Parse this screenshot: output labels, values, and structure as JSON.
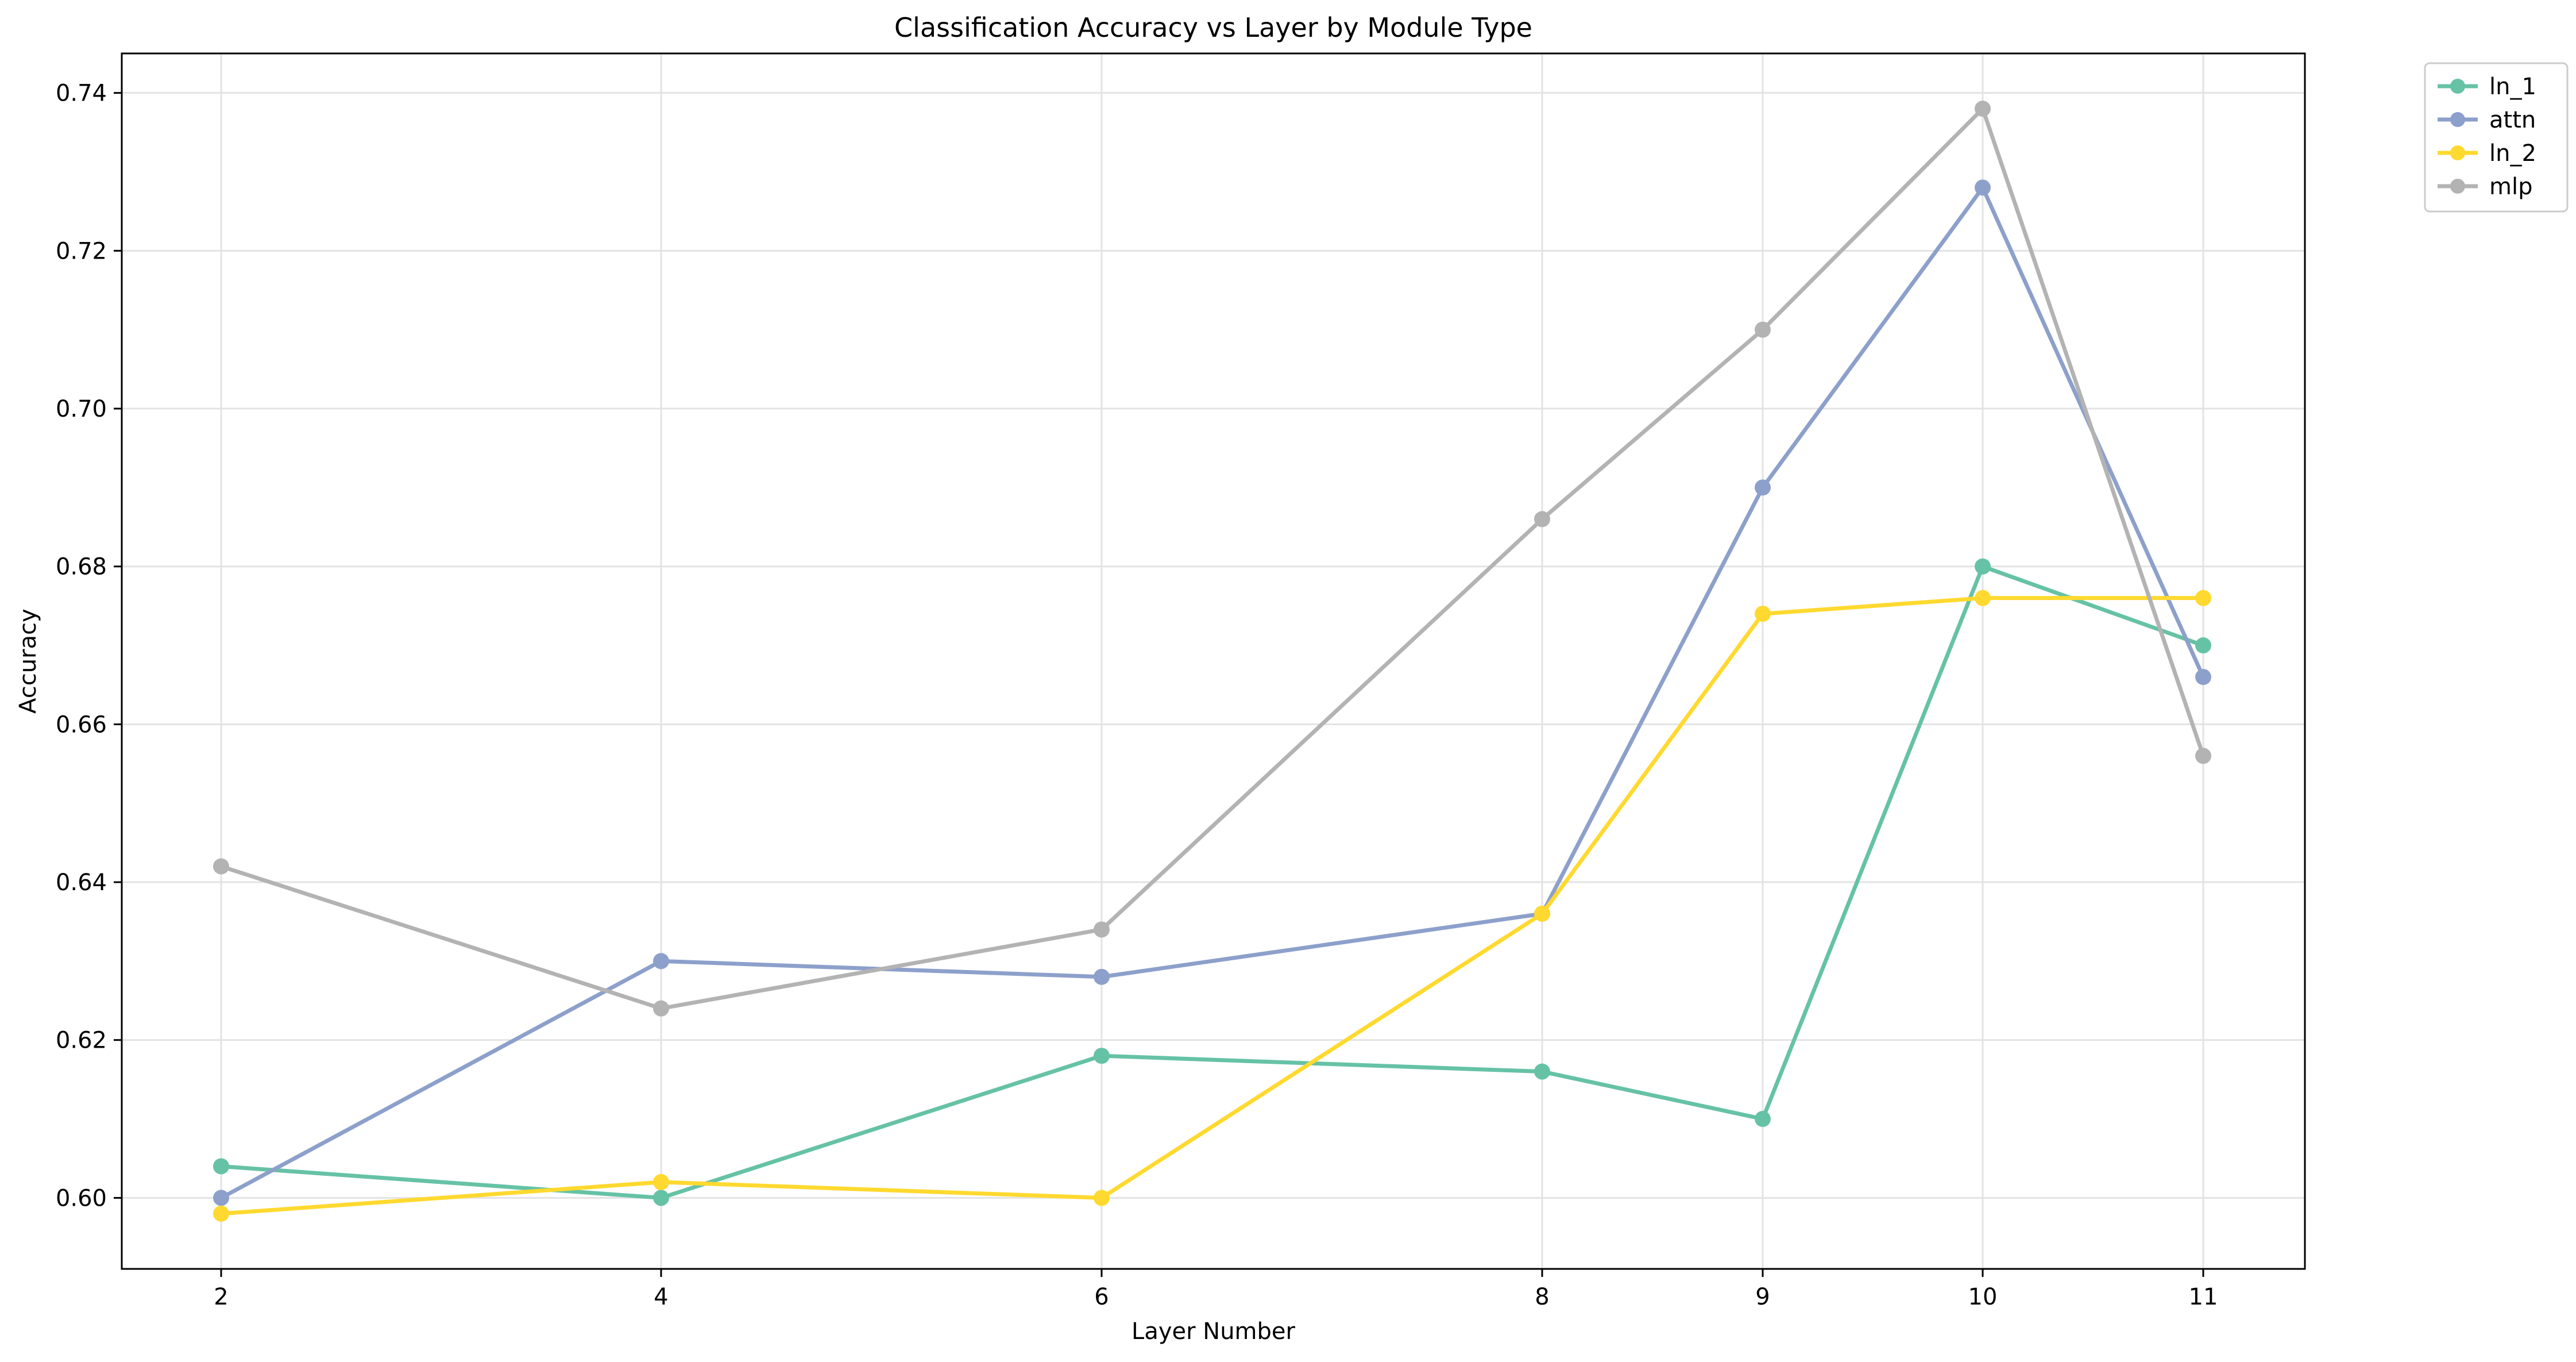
{
  "chart_data": {
    "type": "line",
    "title": "Classification Accuracy vs Layer by Module Type",
    "xlabel": "Layer Number",
    "ylabel": "Accuracy",
    "x": [
      2,
      4,
      6,
      8,
      9,
      10,
      11
    ],
    "x_tick_labels": [
      "2",
      "4",
      "6",
      "8",
      "9",
      "10",
      "11"
    ],
    "x_scale": "categorical positions proportional to layer index (2,4,6,8 spaced by two slots; 9,10,11 by one)",
    "ylim": [
      0.591,
      0.745
    ],
    "y_ticks": [
      0.6,
      0.62,
      0.64,
      0.66,
      0.68,
      0.7,
      0.72,
      0.74
    ],
    "y_tick_labels": [
      "0.60",
      "0.62",
      "0.64",
      "0.66",
      "0.68",
      "0.70",
      "0.72",
      "0.74"
    ],
    "grid": true,
    "legend_position": "outside top-right",
    "series": [
      {
        "name": "ln_1",
        "color": "#66c2a5",
        "values": [
          0.604,
          0.6,
          0.618,
          0.616,
          0.61,
          0.68,
          0.67
        ]
      },
      {
        "name": "attn",
        "color": "#8da0cb",
        "values": [
          0.6,
          0.63,
          0.628,
          0.636,
          0.69,
          0.728,
          0.666
        ]
      },
      {
        "name": "ln_2",
        "color": "#ffd92f",
        "values": [
          0.598,
          0.602,
          0.6,
          0.636,
          0.674,
          0.676,
          0.676
        ]
      },
      {
        "name": "mlp",
        "color": "#b3b3b3",
        "values": [
          0.642,
          0.624,
          0.634,
          0.686,
          0.71,
          0.738,
          0.656
        ]
      }
    ]
  }
}
